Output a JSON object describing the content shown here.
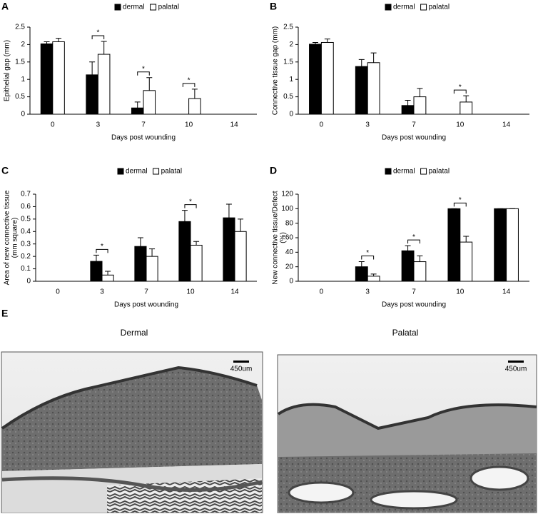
{
  "chart_data": [
    {
      "type": "bar",
      "label": "A",
      "ylabel": [
        "Epithelial gap (mm)"
      ],
      "xlabel": "Days post wounding",
      "categories": [
        "0",
        "3",
        "7",
        "10",
        "14"
      ],
      "series": [
        {
          "name": "dermal",
          "color": "#000000",
          "values": [
            2.02,
            1.13,
            0.18,
            0,
            0
          ],
          "errors": [
            0.06,
            0.37,
            0.17,
            0,
            0
          ]
        },
        {
          "name": "palatal",
          "color": "#ffffff",
          "values": [
            2.08,
            1.72,
            0.68,
            0.45,
            0
          ],
          "errors": [
            0.1,
            0.37,
            0.37,
            0.27,
            0
          ]
        }
      ],
      "ylim": [
        0,
        2.5
      ],
      "yticks": [
        0,
        0.5,
        1,
        1.5,
        2,
        2.5
      ],
      "significance": [
        {
          "category": "3",
          "label": "*"
        },
        {
          "category": "7",
          "label": "*"
        },
        {
          "category": "10",
          "label": "*"
        }
      ]
    },
    {
      "type": "bar",
      "label": "B",
      "ylabel": [
        "Connective tissue gap (mm)"
      ],
      "xlabel": "Days post wounding",
      "categories": [
        "0",
        "3",
        "7",
        "10",
        "14"
      ],
      "series": [
        {
          "name": "dermal",
          "color": "#000000",
          "values": [
            2.01,
            1.37,
            0.25,
            0,
            0
          ],
          "errors": [
            0.05,
            0.2,
            0.15,
            0,
            0
          ]
        },
        {
          "name": "palatal",
          "color": "#ffffff",
          "values": [
            2.06,
            1.48,
            0.5,
            0.35,
            0
          ],
          "errors": [
            0.1,
            0.28,
            0.24,
            0.18,
            0
          ]
        }
      ],
      "ylim": [
        0,
        2.5
      ],
      "yticks": [
        0,
        0.5,
        1,
        1.5,
        2,
        2.5
      ],
      "significance": [
        {
          "category": "10",
          "label": "*"
        }
      ]
    },
    {
      "type": "bar",
      "label": "C",
      "ylabel": [
        "Area of new connective tissue",
        "(mm square)"
      ],
      "xlabel": "Days post wounding",
      "categories": [
        "0",
        "3",
        "7",
        "10",
        "14"
      ],
      "series": [
        {
          "name": "dermal",
          "color": "#000000",
          "values": [
            0,
            0.16,
            0.28,
            0.48,
            0.51
          ],
          "errors": [
            0,
            0.05,
            0.07,
            0.09,
            0.11
          ]
        },
        {
          "name": "palatal",
          "color": "#ffffff",
          "values": [
            0,
            0.05,
            0.2,
            0.29,
            0.4
          ],
          "errors": [
            0,
            0.03,
            0.06,
            0.03,
            0.1
          ]
        }
      ],
      "ylim": [
        0,
        0.7
      ],
      "yticks": [
        0,
        0.1,
        0.2,
        0.3,
        0.4,
        0.5,
        0.6,
        0.7
      ],
      "significance": [
        {
          "category": "3",
          "label": "*"
        },
        {
          "category": "10",
          "label": "*"
        }
      ]
    },
    {
      "type": "bar",
      "label": "D",
      "ylabel": [
        "New connective tissue/Defect",
        "(%)"
      ],
      "xlabel": "Days post wounding",
      "categories": [
        "0",
        "3",
        "7",
        "10",
        "14"
      ],
      "series": [
        {
          "name": "dermal",
          "color": "#000000",
          "values": [
            0,
            20,
            42,
            100,
            100
          ],
          "errors": [
            0,
            7,
            7,
            0,
            0
          ]
        },
        {
          "name": "palatal",
          "color": "#ffffff",
          "values": [
            0,
            7,
            27,
            54,
            100
          ],
          "errors": [
            0,
            3,
            8,
            8,
            0
          ]
        }
      ],
      "ylim": [
        0,
        120
      ],
      "yticks": [
        0,
        20,
        40,
        60,
        80,
        100,
        120
      ],
      "significance": [
        {
          "category": "3",
          "label": "*"
        },
        {
          "category": "7",
          "label": "*"
        },
        {
          "category": "10",
          "label": "*"
        }
      ]
    }
  ],
  "figure_e": {
    "label": "E",
    "panels": [
      {
        "title": "Dermal",
        "scale_label": "450um"
      },
      {
        "title": "Palatal",
        "scale_label": "450um"
      }
    ]
  }
}
